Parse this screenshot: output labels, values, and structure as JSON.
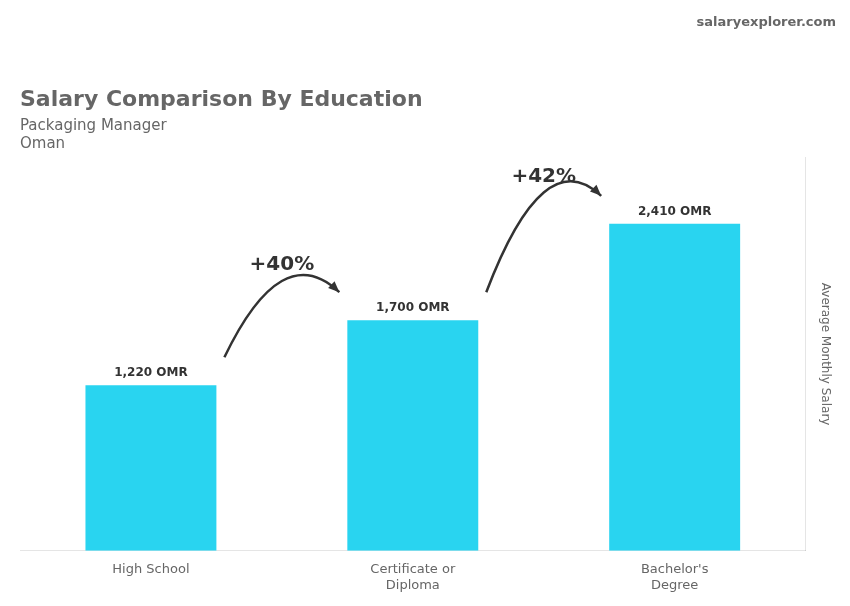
{
  "chart_data": {
    "type": "bar",
    "title": "Salary Comparison By Education",
    "subtitle": [
      "Packaging Manager",
      "Oman"
    ],
    "source": "salaryexplorer.com",
    "y_label": "Average Monthly Salary",
    "categories": [
      "High School",
      "Certificate or\nDiploma",
      "Bachelor's\nDegree"
    ],
    "values": [
      1220,
      1700,
      2410
    ],
    "value_labels": [
      "1,220 OMR",
      "1,700 OMR",
      "2,410 OMR"
    ],
    "annotations": [
      "+40%",
      "+42%"
    ],
    "color": "#29d4f0",
    "ylim": [
      0,
      2900
    ],
    "yticks": [],
    "grid": false,
    "data_labels": true,
    "tick_labels": "x"
  }
}
